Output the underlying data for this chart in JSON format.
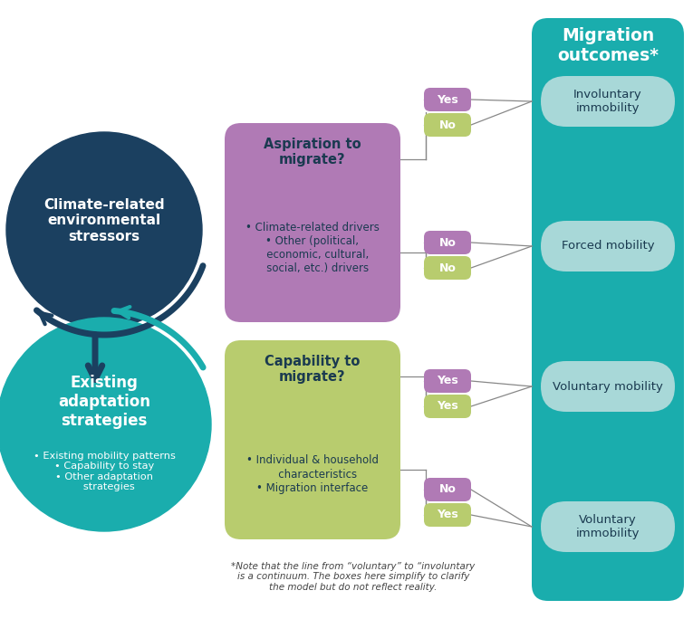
{
  "bg_color": "#ffffff",
  "teal_bg": "#1aadad",
  "teal_light": "#a8d8d8",
  "navy": "#1b4060",
  "teal_circle": "#1aadad",
  "purple_box": "#b07ab5",
  "green_box": "#b8cc6e",
  "white": "#ffffff",
  "dark_text": "#1a3a50",
  "footnote_color": "#444444",
  "title": "Migration\noutcomes*",
  "circle1_text": "Climate-related\nenvironmental\nstressors",
  "circle2_text_bold": "Existing\nadaptation\nstrategies",
  "circle2_bullets": "• Existing mobility patterns\n• Capability to stay\n• Other adaptation\n   strategies",
  "aspiration_title": "Aspiration to\nmigrate?",
  "aspiration_bullets": "• Climate-related drivers\n• Other (political,\n   economic, cultural,\n   social, etc.) drivers",
  "capability_title": "Capability to\nmigrate?",
  "capability_bullets": "• Individual & household\n   characteristics\n• Migration interface",
  "outcomes": [
    "Involuntary\nimmobility",
    "Forced mobility",
    "Voluntary mobility",
    "Voluntary\nimmobility"
  ],
  "footnote": "*Note that the line from “voluntary” to “involuntary\nis a continuum. The boxes here simplify to clarify\nthe model but do not reflect reality."
}
